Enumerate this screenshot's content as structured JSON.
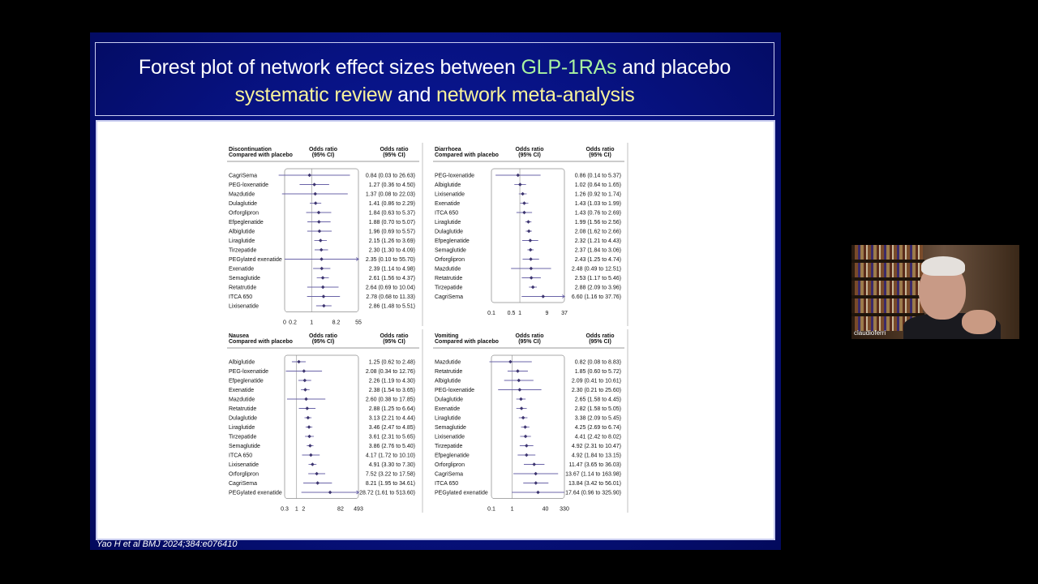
{
  "slide": {
    "title_line1": [
      "Forest plot of network effect sizes between ",
      "GLP-1RAs",
      " and placebo"
    ],
    "title_line2": [
      "systematic review",
      " and ",
      "network meta-analysis"
    ],
    "citation": "Yao H et al BMJ 2024;384:e076410",
    "colors": {
      "background": "#071282",
      "green_highlight": "#a9f2a0",
      "yellow_highlight": "#f7f29a",
      "point": "#3d3570",
      "line": "#6b64a8"
    }
  },
  "webcam": {
    "name": "claudioferri"
  },
  "chart_data": [
    {
      "type": "forest",
      "title": "Discontinuation",
      "subtitle": "Compared with placebo",
      "col_header_plot": [
        "Odds ratio",
        "(95% CI)"
      ],
      "col_header_text": [
        "Odds ratio",
        "(95% CI)"
      ],
      "xscale": "log",
      "xlim": [
        0.1,
        55
      ],
      "ticks": [
        0,
        0.2,
        1,
        8.2,
        55
      ],
      "rows": [
        {
          "label": "CagriSema",
          "or": 0.84,
          "lo": 0.03,
          "hi": 26.63,
          "text": "0.84 (0.03 to 26.63)"
        },
        {
          "label": "PEG-loxenatide",
          "or": 1.27,
          "lo": 0.36,
          "hi": 4.5,
          "text": "1.27 (0.36 to 4.50)"
        },
        {
          "label": "Mazdutide",
          "or": 1.37,
          "lo": 0.08,
          "hi": 22.03,
          "text": "1.37 (0.08 to 22.03)"
        },
        {
          "label": "Dulaglutide",
          "or": 1.41,
          "lo": 0.86,
          "hi": 2.29,
          "text": "1.41 (0.86 to 2.29)"
        },
        {
          "label": "Orforglipron",
          "or": 1.84,
          "lo": 0.63,
          "hi": 5.37,
          "text": "1.84 (0.63 to 5.37)"
        },
        {
          "label": "Efpeglenatide",
          "or": 1.88,
          "lo": 0.7,
          "hi": 5.07,
          "text": "1.88 (0.70 to 5.07)"
        },
        {
          "label": "Albiglutide",
          "or": 1.96,
          "lo": 0.69,
          "hi": 5.57,
          "text": "1.96 (0.69 to 5.57)"
        },
        {
          "label": "Liraglutide",
          "or": 2.15,
          "lo": 1.26,
          "hi": 3.69,
          "text": "2.15 (1.26 to 3.69)"
        },
        {
          "label": "Tirzepatide",
          "or": 2.3,
          "lo": 1.3,
          "hi": 4.09,
          "text": "2.30 (1.30 to 4.09)"
        },
        {
          "label": "PEGylated exenatide",
          "or": 2.35,
          "lo": 0.1,
          "hi": 55.7,
          "text": "2.35 (0.10 to 55.70)"
        },
        {
          "label": "Exenatide",
          "or": 2.39,
          "lo": 1.14,
          "hi": 4.98,
          "text": "2.39 (1.14 to 4.98)"
        },
        {
          "label": "Semaglutide",
          "or": 2.61,
          "lo": 1.56,
          "hi": 4.37,
          "text": "2.61 (1.56 to 4.37)"
        },
        {
          "label": "Retatrutide",
          "or": 2.64,
          "lo": 0.69,
          "hi": 10.04,
          "text": "2.64 (0.69 to 10.04)"
        },
        {
          "label": "ITCA 650",
          "or": 2.78,
          "lo": 0.68,
          "hi": 11.33,
          "text": "2.78 (0.68 to 11.33)"
        },
        {
          "label": "Lixisenatide",
          "or": 2.86,
          "lo": 1.48,
          "hi": 5.51,
          "text": "2.86 (1.48 to 5.51)"
        }
      ]
    },
    {
      "type": "forest",
      "title": "Diarrhoea",
      "subtitle": "Compared with placebo",
      "col_header_plot": [
        "Odds ratio",
        "(95% CI)"
      ],
      "col_header_text": [
        "Odds ratio",
        "(95% CI)"
      ],
      "xscale": "log",
      "xlim": [
        0.1,
        37
      ],
      "ticks": [
        0.1,
        0.5,
        1,
        9,
        37
      ],
      "rows": [
        {
          "label": "PEG-loxenatide",
          "or": 0.86,
          "lo": 0.14,
          "hi": 5.37,
          "text": "0.86 (0.14 to 5.37)"
        },
        {
          "label": "Albiglutide",
          "or": 1.02,
          "lo": 0.64,
          "hi": 1.65,
          "text": "1.02 (0.64 to 1.65)"
        },
        {
          "label": "Lixisenatide",
          "or": 1.26,
          "lo": 0.92,
          "hi": 1.74,
          "text": "1.26 (0.92 to 1.74)"
        },
        {
          "label": "Exenatide",
          "or": 1.43,
          "lo": 1.03,
          "hi": 1.99,
          "text": "1.43 (1.03 to 1.99)"
        },
        {
          "label": "ITCA 650",
          "or": 1.43,
          "lo": 0.76,
          "hi": 2.69,
          "text": "1.43 (0.76 to 2.69)"
        },
        {
          "label": "Liraglutide",
          "or": 1.99,
          "lo": 1.56,
          "hi": 2.56,
          "text": "1.99 (1.56 to 2.56)"
        },
        {
          "label": "Dulaglutide",
          "or": 2.08,
          "lo": 1.62,
          "hi": 2.66,
          "text": "2.08 (1.62 to 2.66)"
        },
        {
          "label": "Efpeglenatide",
          "or": 2.32,
          "lo": 1.21,
          "hi": 4.43,
          "text": "2.32 (1.21 to 4.43)"
        },
        {
          "label": "Semaglutide",
          "or": 2.37,
          "lo": 1.84,
          "hi": 3.06,
          "text": "2.37 (1.84 to 3.06)"
        },
        {
          "label": "Orforglipron",
          "or": 2.43,
          "lo": 1.25,
          "hi": 4.74,
          "text": "2.43 (1.25 to 4.74)"
        },
        {
          "label": "Mazdutide",
          "or": 2.48,
          "lo": 0.49,
          "hi": 12.51,
          "text": "2.48 (0.49 to 12.51)"
        },
        {
          "label": "Retatrutide",
          "or": 2.53,
          "lo": 1.17,
          "hi": 5.46,
          "text": "2.53 (1.17 to 5.46)"
        },
        {
          "label": "Tirzepatide",
          "or": 2.88,
          "lo": 2.09,
          "hi": 3.96,
          "text": "2.88 (2.09 to 3.96)"
        },
        {
          "label": "CagriSema",
          "or": 6.6,
          "lo": 1.16,
          "hi": 37.76,
          "text": "6.60 (1.16 to 37.76)"
        }
      ]
    },
    {
      "type": "forest",
      "title": "Nausea",
      "subtitle": "Compared with placebo",
      "col_header_plot": [
        "Odds ratio",
        "(95% CI)"
      ],
      "col_header_text": [
        "Odds ratio",
        "(95% CI)"
      ],
      "xscale": "log",
      "xlim": [
        0.3,
        493
      ],
      "ticks": [
        0.3,
        1,
        2,
        82,
        493
      ],
      "rows": [
        {
          "label": "Albiglutide",
          "or": 1.25,
          "lo": 0.62,
          "hi": 2.48,
          "text": "1.25 (0.62 to 2.48)"
        },
        {
          "label": "PEG-loxenatide",
          "or": 2.08,
          "lo": 0.34,
          "hi": 12.76,
          "text": "2.08 (0.34 to 12.76)"
        },
        {
          "label": "Efpeglenatide",
          "or": 2.26,
          "lo": 1.19,
          "hi": 4.3,
          "text": "2.26 (1.19 to 4.30)"
        },
        {
          "label": "Exenatide",
          "or": 2.38,
          "lo": 1.54,
          "hi": 3.65,
          "text": "2.38 (1.54 to 3.65)"
        },
        {
          "label": "Mazdutide",
          "or": 2.6,
          "lo": 0.38,
          "hi": 17.85,
          "text": "2.60 (0.38 to 17.85)"
        },
        {
          "label": "Retatrutide",
          "or": 2.88,
          "lo": 1.25,
          "hi": 6.64,
          "text": "2.88 (1.25 to 6.64)"
        },
        {
          "label": "Dulaglutide",
          "or": 3.13,
          "lo": 2.21,
          "hi": 4.44,
          "text": "3.13 (2.21 to 4.44)"
        },
        {
          "label": "Liraglutide",
          "or": 3.46,
          "lo": 2.47,
          "hi": 4.85,
          "text": "3.46 (2.47 to 4.85)"
        },
        {
          "label": "Tirzepatide",
          "or": 3.61,
          "lo": 2.31,
          "hi": 5.65,
          "text": "3.61 (2.31 to 5.65)"
        },
        {
          "label": "Semaglutide",
          "or": 3.86,
          "lo": 2.76,
          "hi": 5.4,
          "text": "3.86 (2.76 to 5.40)"
        },
        {
          "label": "ITCA 650",
          "or": 4.17,
          "lo": 1.72,
          "hi": 10.1,
          "text": "4.17 (1.72 to 10.10)"
        },
        {
          "label": "Lixisenatide",
          "or": 4.91,
          "lo": 3.3,
          "hi": 7.3,
          "text": "4.91 (3.30 to 7.30)"
        },
        {
          "label": "Orforglipron",
          "or": 7.52,
          "lo": 3.22,
          "hi": 17.58,
          "text": "7.52 (3.22 to 17.58)"
        },
        {
          "label": "CagriSema",
          "or": 8.21,
          "lo": 1.95,
          "hi": 34.61,
          "text": "8.21 (1.95 to 34.61)"
        },
        {
          "label": "PEGylated exenatide",
          "or": 28.72,
          "lo": 1.61,
          "hi": 513.6,
          "text": "28.72 (1.61 to 513.60)"
        }
      ]
    },
    {
      "type": "forest",
      "title": "Vomiting",
      "subtitle": "Compared with placebo",
      "col_header_plot": [
        "Odds ratio",
        "(95% CI)"
      ],
      "col_header_text": [
        "Odds ratio",
        "(95% CI)"
      ],
      "xscale": "log",
      "xlim": [
        0.1,
        330
      ],
      "ticks": [
        0.1,
        1,
        40,
        330
      ],
      "rows": [
        {
          "label": "Mazdutide",
          "or": 0.82,
          "lo": 0.08,
          "hi": 8.83,
          "text": "0.82 (0.08 to 8.83)"
        },
        {
          "label": "Retatrutide",
          "or": 1.85,
          "lo": 0.6,
          "hi": 5.72,
          "text": "1.85 (0.60 to 5.72)"
        },
        {
          "label": "Albiglutide",
          "or": 2.09,
          "lo": 0.41,
          "hi": 10.61,
          "text": "2.09 (0.41 to 10.61)"
        },
        {
          "label": "PEG-loxenatide",
          "or": 2.3,
          "lo": 0.21,
          "hi": 25.6,
          "text": "2.30 (0.21 to 25.60)"
        },
        {
          "label": "Dulaglutide",
          "or": 2.65,
          "lo": 1.58,
          "hi": 4.45,
          "text": "2.65 (1.58 to 4.45)"
        },
        {
          "label": "Exenatide",
          "or": 2.82,
          "lo": 1.58,
          "hi": 5.05,
          "text": "2.82 (1.58 to 5.05)"
        },
        {
          "label": "Liraglutide",
          "or": 3.38,
          "lo": 2.09,
          "hi": 5.45,
          "text": "3.38 (2.09 to 5.45)"
        },
        {
          "label": "Semaglutide",
          "or": 4.25,
          "lo": 2.69,
          "hi": 6.74,
          "text": "4.25 (2.69 to 6.74)"
        },
        {
          "label": "Lixisenatide",
          "or": 4.41,
          "lo": 2.42,
          "hi": 8.02,
          "text": "4.41 (2.42 to 8.02)"
        },
        {
          "label": "Tirzepatide",
          "or": 4.92,
          "lo": 2.31,
          "hi": 10.47,
          "text": "4.92 (2.31 to 10.47)"
        },
        {
          "label": "Efpeglenatide",
          "or": 4.92,
          "lo": 1.84,
          "hi": 13.15,
          "text": "4.92 (1.84 to 13.15)"
        },
        {
          "label": "Orforglipron",
          "or": 11.47,
          "lo": 3.65,
          "hi": 36.03,
          "text": "11.47 (3.65 to 36.03)"
        },
        {
          "label": "CagriSema",
          "or": 13.67,
          "lo": 1.14,
          "hi": 163.98,
          "text": "13.67 (1.14 to 163.98)"
        },
        {
          "label": "ITCA 650",
          "or": 13.84,
          "lo": 3.42,
          "hi": 56.01,
          "text": "13.84 (3.42 to 56.01)"
        },
        {
          "label": "PEGylated exenatide",
          "or": 17.64,
          "lo": 0.96,
          "hi": 325.9,
          "text": "17.64 (0.96 to 325.90)"
        }
      ]
    }
  ]
}
